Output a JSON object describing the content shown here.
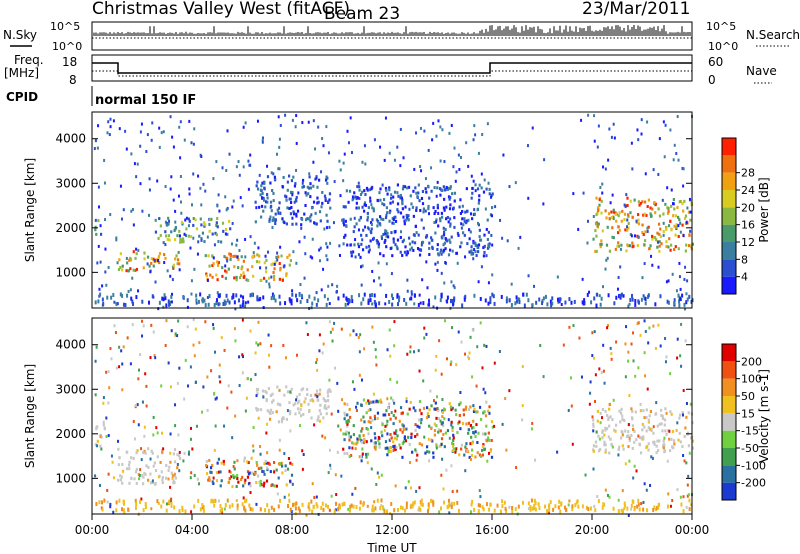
{
  "header": {
    "title": "Christmas Valley West (fitACF)",
    "beam": "Beam 23",
    "date": "23/Mar/2011"
  },
  "top_panels": {
    "nsky": {
      "label": "N.Sky",
      "left_ticks": [
        "10^5",
        "10^0"
      ],
      "right_ticks": [
        "10^5",
        "10^0"
      ],
      "right_label": "N.Search"
    },
    "freq": {
      "label_line1": "Freq.",
      "label_line2": "[MHz]",
      "left_ticks": [
        "18",
        "8"
      ],
      "right_ticks": [
        "60",
        "0"
      ],
      "right_label": "Nave"
    },
    "cpid": {
      "label": "CPID",
      "value": "normal 150 IF"
    }
  },
  "chart_data": [
    {
      "type": "heatmap",
      "title": "",
      "parameter": "Power",
      "ylabel": "Slant Range [km]",
      "yticks": [
        "1000",
        "2000",
        "3000",
        "4000"
      ],
      "ylim": [
        200,
        4600
      ],
      "colorbar": {
        "label": "Power [dB]",
        "ticks": [
          "4",
          "8",
          "12",
          "16",
          "20",
          "24",
          "28"
        ],
        "colors": [
          "#1a1aff",
          "#2a4fd0",
          "#3a7fa0",
          "#4a9a6a",
          "#8ab840",
          "#d8cc20",
          "#f0a010",
          "#f07010",
          "#ff2000"
        ]
      },
      "regions_hours_km": [
        {
          "t": [
            0.0,
            0.4
          ],
          "r": [
            1750,
            2250
          ],
          "level": "mid"
        },
        {
          "t": [
            1.0,
            3.5
          ],
          "r": [
            1050,
            1500
          ],
          "level": "high"
        },
        {
          "t": [
            4.5,
            8.0
          ],
          "r": [
            850,
            1450
          ],
          "level": "high"
        },
        {
          "t": [
            2.5,
            5.5
          ],
          "r": [
            1700,
            2250
          ],
          "level": "mid"
        },
        {
          "t": [
            6.5,
            9.5
          ],
          "r": [
            2100,
            3200
          ],
          "level": "low"
        },
        {
          "t": [
            10.0,
            16.0
          ],
          "r": [
            1400,
            3000
          ],
          "level": "low"
        },
        {
          "t": [
            20.0,
            24.0
          ],
          "r": [
            1500,
            2700
          ],
          "level": "high"
        }
      ]
    },
    {
      "type": "heatmap",
      "title": "",
      "parameter": "Velocity",
      "ylabel": "Slant Range [km]",
      "yticks": [
        "1000",
        "2000",
        "3000",
        "4000"
      ],
      "ylim": [
        200,
        4600
      ],
      "colorbar": {
        "label": "Velocity [m s-1]",
        "ticks": [
          "200",
          "100",
          "50",
          "15",
          "-15",
          "-50",
          "-100",
          "-200"
        ],
        "colors": [
          "#1a3ad0",
          "#2a70a0",
          "#40a050",
          "#70d040",
          "#c8c8c8",
          "#f0c020",
          "#f09020",
          "#f05010",
          "#e00000"
        ]
      },
      "regions_hours_km": [
        {
          "t": [
            0.0,
            0.5
          ],
          "r": [
            1750,
            2250
          ],
          "level": "ground"
        },
        {
          "t": [
            1.0,
            3.5
          ],
          "r": [
            900,
            1700
          ],
          "level": "ground"
        },
        {
          "t": [
            4.5,
            8.0
          ],
          "r": [
            850,
            1500
          ],
          "level": "mixed"
        },
        {
          "t": [
            6.5,
            9.5
          ],
          "r": [
            2300,
            3100
          ],
          "level": "ground"
        },
        {
          "t": [
            10.0,
            16.0
          ],
          "r": [
            1500,
            2800
          ],
          "level": "mixed"
        },
        {
          "t": [
            20.0,
            24.0
          ],
          "r": [
            1600,
            2600
          ],
          "level": "ground"
        }
      ]
    }
  ],
  "xaxis": {
    "label": "Time UT",
    "ticks": [
      "00:00",
      "04:00",
      "08:00",
      "12:00",
      "16:00",
      "20:00",
      "00:00"
    ],
    "range_hours": [
      0,
      24
    ]
  }
}
